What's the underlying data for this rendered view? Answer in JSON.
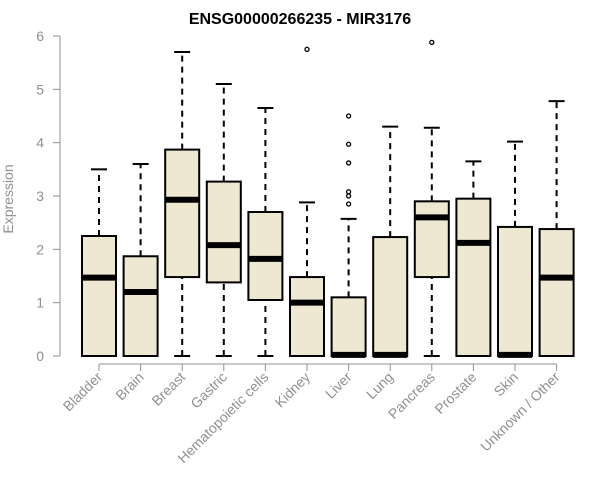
{
  "chart_data": {
    "type": "boxplot",
    "title": "ENSG00000266235 - MIR3176",
    "xlabel": "",
    "ylabel": "Expression",
    "ylim": [
      0,
      6
    ],
    "yticks": [
      0,
      1,
      2,
      3,
      4,
      5,
      6
    ],
    "categories": [
      "Bladder",
      "Brain",
      "Breast",
      "Gastric",
      "Hematopoietic cells",
      "Kidney",
      "Liver",
      "Lung",
      "Pancreas",
      "Prostate",
      "Skin",
      "Unknown / Other"
    ],
    "boxes": [
      {
        "category": "Bladder",
        "whisker_low": 0,
        "q1": 0,
        "median": 1.47,
        "q3": 2.25,
        "whisker_high": 3.5,
        "outliers": []
      },
      {
        "category": "Brain",
        "whisker_low": 0,
        "q1": 0,
        "median": 1.2,
        "q3": 1.87,
        "whisker_high": 3.6,
        "outliers": []
      },
      {
        "category": "Breast",
        "whisker_low": 0,
        "q1": 1.48,
        "median": 2.93,
        "q3": 3.87,
        "whisker_high": 5.7,
        "outliers": []
      },
      {
        "category": "Gastric",
        "whisker_low": 0,
        "q1": 1.38,
        "median": 2.08,
        "q3": 3.27,
        "whisker_high": 5.1,
        "outliers": []
      },
      {
        "category": "Hematopoietic cells",
        "whisker_low": 0,
        "q1": 1.05,
        "median": 1.82,
        "q3": 2.7,
        "whisker_high": 4.65,
        "outliers": []
      },
      {
        "category": "Kidney",
        "whisker_low": 0,
        "q1": 0,
        "median": 1.0,
        "q3": 1.48,
        "whisker_high": 2.88,
        "outliers": [
          5.75
        ]
      },
      {
        "category": "Liver",
        "whisker_low": 0,
        "q1": 0,
        "median": 0.02,
        "q3": 1.1,
        "whisker_high": 2.57,
        "outliers": [
          2.85,
          3.0,
          3.08,
          3.62,
          3.97,
          4.5
        ]
      },
      {
        "category": "Lung",
        "whisker_low": 0,
        "q1": 0,
        "median": 0.02,
        "q3": 2.23,
        "whisker_high": 4.3,
        "outliers": []
      },
      {
        "category": "Pancreas",
        "whisker_low": 0,
        "q1": 1.48,
        "median": 2.6,
        "q3": 2.9,
        "whisker_high": 4.28,
        "outliers": [
          5.88
        ]
      },
      {
        "category": "Prostate",
        "whisker_low": 0,
        "q1": 0,
        "median": 2.12,
        "q3": 2.95,
        "whisker_high": 3.65,
        "outliers": []
      },
      {
        "category": "Skin",
        "whisker_low": 0,
        "q1": 0,
        "median": 0.02,
        "q3": 2.42,
        "whisker_high": 4.02,
        "outliers": []
      },
      {
        "category": "Unknown / Other",
        "whisker_low": 0,
        "q1": 0,
        "median": 1.47,
        "q3": 2.38,
        "whisker_high": 4.78,
        "outliers": []
      }
    ],
    "box_color": "#EEE8D2",
    "line_color": "#000000",
    "axis_color": "#909090",
    "grid": false,
    "legend": "none"
  }
}
